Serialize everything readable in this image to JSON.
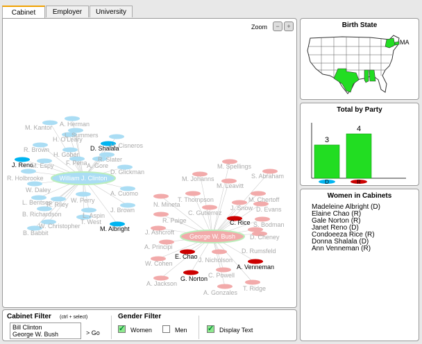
{
  "tabs": [
    {
      "label": "Cabinet",
      "active": true
    },
    {
      "label": "Employer",
      "active": false
    },
    {
      "label": "University",
      "active": false
    }
  ],
  "zoom": {
    "label": "Zoom",
    "minus_icon": "zoom-out-icon",
    "plus_icon": "zoom-in-icon"
  },
  "colors": {
    "dem": "#00b4f0",
    "dem_light": "#aaddf4",
    "rep": "#cc0000",
    "rep_light": "#f2aaaa",
    "green": "#22dd22"
  },
  "graph": {
    "hubs": [
      {
        "id": "clinton",
        "label": "William J. Clinton",
        "party": "D"
      },
      {
        "id": "bush",
        "label": "George W. Bush",
        "party": "R"
      }
    ],
    "members": [
      {
        "hub": "clinton",
        "label": "A. Herman",
        "woman": false
      },
      {
        "hub": "clinton",
        "label": "M. Kantor",
        "woman": false
      },
      {
        "hub": "clinton",
        "label": "L. Summers",
        "woman": false
      },
      {
        "hub": "clinton",
        "label": "H. O'Leary",
        "woman": false
      },
      {
        "hub": "clinton",
        "label": "H. Cisneros",
        "woman": false
      },
      {
        "hub": "clinton",
        "label": "D. Shalala",
        "woman": true
      },
      {
        "hub": "clinton",
        "label": "R. Brown",
        "woman": false
      },
      {
        "hub": "clinton",
        "label": "H. Gober",
        "woman": false
      },
      {
        "hub": "clinton",
        "label": "R. Slater",
        "woman": false
      },
      {
        "hub": "clinton",
        "label": "F. Pena",
        "woman": false
      },
      {
        "hub": "clinton",
        "label": "J. Reno",
        "woman": true
      },
      {
        "hub": "clinton",
        "label": "M. Espy",
        "woman": false
      },
      {
        "hub": "clinton",
        "label": "A. Gore",
        "woman": false
      },
      {
        "hub": "clinton",
        "label": "D. Glickman",
        "woman": false
      },
      {
        "hub": "clinton",
        "label": "R. Holbrooke",
        "woman": false
      },
      {
        "hub": "clinton",
        "label": "W. Daley",
        "woman": false
      },
      {
        "hub": "clinton",
        "label": "A. Cuomo",
        "woman": false
      },
      {
        "hub": "clinton",
        "label": "W. Perry",
        "woman": false
      },
      {
        "hub": "clinton",
        "label": "L. Bentsen",
        "woman": false
      },
      {
        "hub": "clinton",
        "label": "R. Riley",
        "woman": false
      },
      {
        "hub": "clinton",
        "label": "J. Brown",
        "woman": false
      },
      {
        "hub": "clinton",
        "label": "B. Richardson",
        "woman": false
      },
      {
        "hub": "clinton",
        "label": "L. Aspin",
        "woman": false
      },
      {
        "hub": "clinton",
        "label": "T. West",
        "woman": false
      },
      {
        "hub": "clinton",
        "label": "W. Christopher",
        "woman": false
      },
      {
        "hub": "clinton",
        "label": "M. Albright",
        "woman": true
      },
      {
        "hub": "clinton",
        "label": "B. Babbit",
        "woman": false
      },
      {
        "hub": "bush",
        "label": "M. Spellings",
        "woman": false
      },
      {
        "hub": "bush",
        "label": "M. Johanns",
        "woman": false
      },
      {
        "hub": "bush",
        "label": "S. Abraham",
        "woman": false
      },
      {
        "hub": "bush",
        "label": "M. Leavitt",
        "woman": false
      },
      {
        "hub": "bush",
        "label": "T. Thompson",
        "woman": false
      },
      {
        "hub": "bush",
        "label": "M. Chertoff",
        "woman": false
      },
      {
        "hub": "bush",
        "label": "N. Mineta",
        "woman": false
      },
      {
        "hub": "bush",
        "label": "J. Snow",
        "woman": false
      },
      {
        "hub": "bush",
        "label": "D. Evans",
        "woman": false
      },
      {
        "hub": "bush",
        "label": "C. Gutierrez",
        "woman": false
      },
      {
        "hub": "bush",
        "label": "R. Paige",
        "woman": false
      },
      {
        "hub": "bush",
        "label": "C. Rice",
        "woman": true
      },
      {
        "hub": "bush",
        "label": "S. Bodman",
        "woman": false
      },
      {
        "hub": "bush",
        "label": "J. Ashcroft",
        "woman": false
      },
      {
        "hub": "bush",
        "label": "D. Rumsfeld",
        "woman": false
      },
      {
        "hub": "bush",
        "label": "D. Cheney",
        "woman": false
      },
      {
        "hub": "bush",
        "label": "A. Principi",
        "woman": false
      },
      {
        "hub": "bush",
        "label": "E. Chao",
        "woman": true
      },
      {
        "hub": "bush",
        "label": "J. Nicholson",
        "woman": false
      },
      {
        "hub": "bush",
        "label": "W. Cohen",
        "woman": false
      },
      {
        "hub": "bush",
        "label": "A. Venneman",
        "woman": true
      },
      {
        "hub": "bush",
        "label": "G. Norton",
        "woman": true
      },
      {
        "hub": "bush",
        "label": "C. Powell",
        "woman": false
      },
      {
        "hub": "bush",
        "label": "A. Jackson",
        "woman": false
      },
      {
        "hub": "bush",
        "label": "A. Gonzales",
        "woman": false
      },
      {
        "hub": "bush",
        "label": "T. Ridge",
        "woman": false
      }
    ]
  },
  "birth_state": {
    "title": "Birth State",
    "highlight_label": "MA",
    "highlighted_states": [
      "TX",
      "AL",
      "MS",
      "MA",
      "NY"
    ]
  },
  "chart_data": {
    "type": "bar",
    "title": "Total by Party",
    "categories": [
      "D",
      "R"
    ],
    "values": [
      3,
      4
    ],
    "ylim": [
      0,
      5
    ]
  },
  "women": {
    "title": "Women in Cabinets",
    "items": [
      "Madeleine Albright (D)",
      "Elaine Chao (R)",
      "Gale Norton (R)",
      "Janet Reno (D)",
      "Condoeeza Rice (R)",
      "Donna Shalala (D)",
      "Ann Venneman (R)"
    ]
  },
  "filters": {
    "cabinet_title": "Cabinet Filter",
    "cabinet_hint": "(ctrl + select)",
    "cabinet_options": [
      "Bill Clinton",
      "George W. Bush"
    ],
    "go_label": "> Go",
    "gender_title": "Gender Filter",
    "women_label": "Women",
    "women_checked": true,
    "men_label": "Men",
    "men_checked": false,
    "display_text_label": "Display Text",
    "display_text_checked": true
  }
}
